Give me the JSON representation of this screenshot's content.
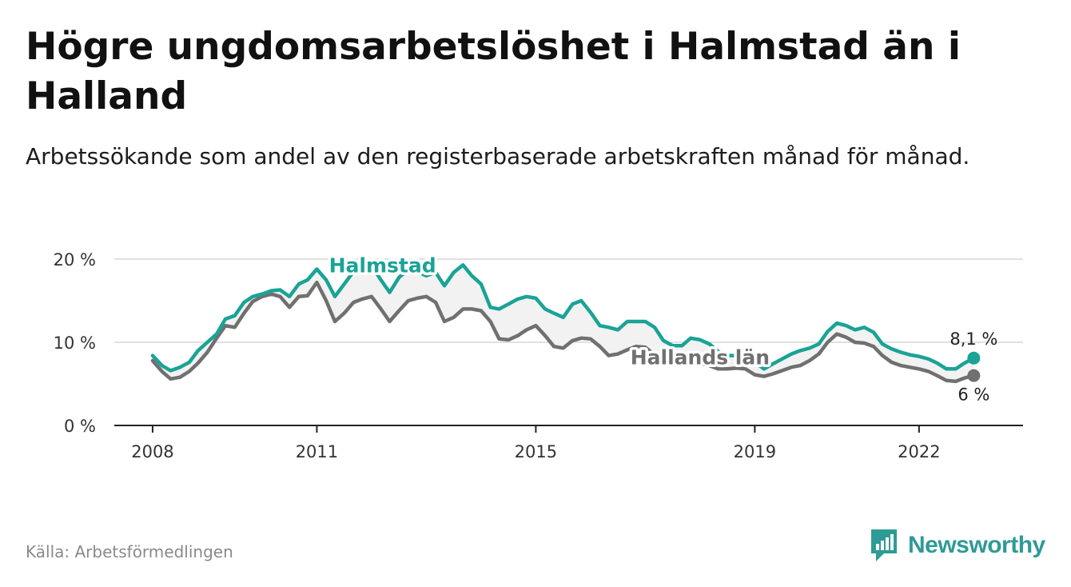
{
  "title": "Högre ungdomsarbetslöshet i Halmstad än i Halland",
  "subtitle": "Arbetssökande som andel av den registerbaserade arbetskraften månad för månad.",
  "source": "Källa: Arbetsförmedlingen",
  "brand": {
    "name": "Newsworthy",
    "color": "#2e9b95"
  },
  "colors": {
    "halmstad": "#1aa396",
    "halland": "#707070",
    "grid": "#d7d7d7",
    "band": "#f2f2f2"
  },
  "chart_data": {
    "type": "line",
    "title": "Högre ungdomsarbetslöshet i Halmstad än i Halland",
    "xlabel": "",
    "ylabel": "",
    "xlim": [
      2007.3,
      2023.9
    ],
    "ylim": [
      0,
      20
    ],
    "x_ticks": [
      2008,
      2011,
      2015,
      2019,
      2022
    ],
    "y_ticks": [
      {
        "value": 0,
        "label": "0 %"
      },
      {
        "value": 10,
        "label": "10 %"
      },
      {
        "value": 20,
        "label": "20 %"
      }
    ],
    "x": [
      2008.0,
      2008.17,
      2008.33,
      2008.5,
      2008.67,
      2008.83,
      2009.0,
      2009.17,
      2009.33,
      2009.5,
      2009.67,
      2009.83,
      2010.0,
      2010.17,
      2010.33,
      2010.5,
      2010.67,
      2010.83,
      2011.0,
      2011.17,
      2011.33,
      2011.5,
      2011.67,
      2011.83,
      2012.0,
      2012.17,
      2012.33,
      2012.5,
      2012.67,
      2012.83,
      2013.0,
      2013.17,
      2013.33,
      2013.5,
      2013.67,
      2013.83,
      2014.0,
      2014.17,
      2014.33,
      2014.5,
      2014.67,
      2014.83,
      2015.0,
      2015.17,
      2015.33,
      2015.5,
      2015.67,
      2015.83,
      2016.0,
      2016.17,
      2016.33,
      2016.5,
      2016.67,
      2016.83,
      2017.0,
      2017.17,
      2017.33,
      2017.5,
      2017.67,
      2017.83,
      2018.0,
      2018.17,
      2018.33,
      2018.5,
      2018.67,
      2018.83,
      2019.0,
      2019.17,
      2019.33,
      2019.5,
      2019.67,
      2019.83,
      2020.0,
      2020.17,
      2020.33,
      2020.5,
      2020.67,
      2020.83,
      2021.0,
      2021.17,
      2021.33,
      2021.5,
      2021.67,
      2021.83,
      2022.0,
      2022.17,
      2022.33,
      2022.5,
      2022.67,
      2022.83,
      2023.0
    ],
    "series": [
      {
        "name": "Halmstad",
        "end_label": "8,1 %",
        "values": [
          8.4,
          7.2,
          6.6,
          7.0,
          7.6,
          9.0,
          10.0,
          11.0,
          12.8,
          13.2,
          14.8,
          15.5,
          15.8,
          16.2,
          16.3,
          15.5,
          17.0,
          17.5,
          18.8,
          17.5,
          15.5,
          17.0,
          18.5,
          19.0,
          19.2,
          17.5,
          16.0,
          17.8,
          18.7,
          18.5,
          18.0,
          18.4,
          16.8,
          18.4,
          19.3,
          18.0,
          17.0,
          14.2,
          14.0,
          14.6,
          15.2,
          15.5,
          15.3,
          14.0,
          13.5,
          13.0,
          14.6,
          15.0,
          13.6,
          12.0,
          11.8,
          11.5,
          12.5,
          12.5,
          12.5,
          11.8,
          10.2,
          9.6,
          9.6,
          10.5,
          10.3,
          9.8,
          8.9,
          8.4,
          8.4,
          8.3,
          7.6,
          6.8,
          7.4,
          8.0,
          8.6,
          9.0,
          9.3,
          9.8,
          11.3,
          12.3,
          12.0,
          11.5,
          11.8,
          11.2,
          9.8,
          9.2,
          8.8,
          8.5,
          8.3,
          8.0,
          7.5,
          6.8,
          6.8,
          7.5,
          8.1
        ]
      },
      {
        "name": "Hallands län",
        "end_label": "6 %",
        "values": [
          7.8,
          6.5,
          5.6,
          5.8,
          6.5,
          7.5,
          8.8,
          10.5,
          12.0,
          11.8,
          13.5,
          14.9,
          15.5,
          15.8,
          15.5,
          14.2,
          15.5,
          15.6,
          17.2,
          15.0,
          12.5,
          13.5,
          14.8,
          15.2,
          15.5,
          14.0,
          12.5,
          13.8,
          15.0,
          15.3,
          15.5,
          14.8,
          12.5,
          13.0,
          14.0,
          14.0,
          13.8,
          12.5,
          10.4,
          10.3,
          10.8,
          11.5,
          12.0,
          10.8,
          9.5,
          9.3,
          10.2,
          10.5,
          10.4,
          9.5,
          8.4,
          8.6,
          9.1,
          9.5,
          9.4,
          8.5,
          7.5,
          7.3,
          7.4,
          7.6,
          7.4,
          7.2,
          6.8,
          6.8,
          6.9,
          6.8,
          6.1,
          5.9,
          6.2,
          6.6,
          7.0,
          7.2,
          7.8,
          8.6,
          10.0,
          11.0,
          10.6,
          10.0,
          9.9,
          9.5,
          8.4,
          7.6,
          7.2,
          7.0,
          6.8,
          6.5,
          6.0,
          5.4,
          5.3,
          5.7,
          6.0
        ]
      }
    ],
    "annotations": [
      {
        "text": "Halmstad",
        "series": "Halmstad",
        "x": 2012.2,
        "y": 19.3
      },
      {
        "text": "Hallands län",
        "series": "Hallands län",
        "x": 2018.0,
        "y": 8.2
      }
    ]
  }
}
